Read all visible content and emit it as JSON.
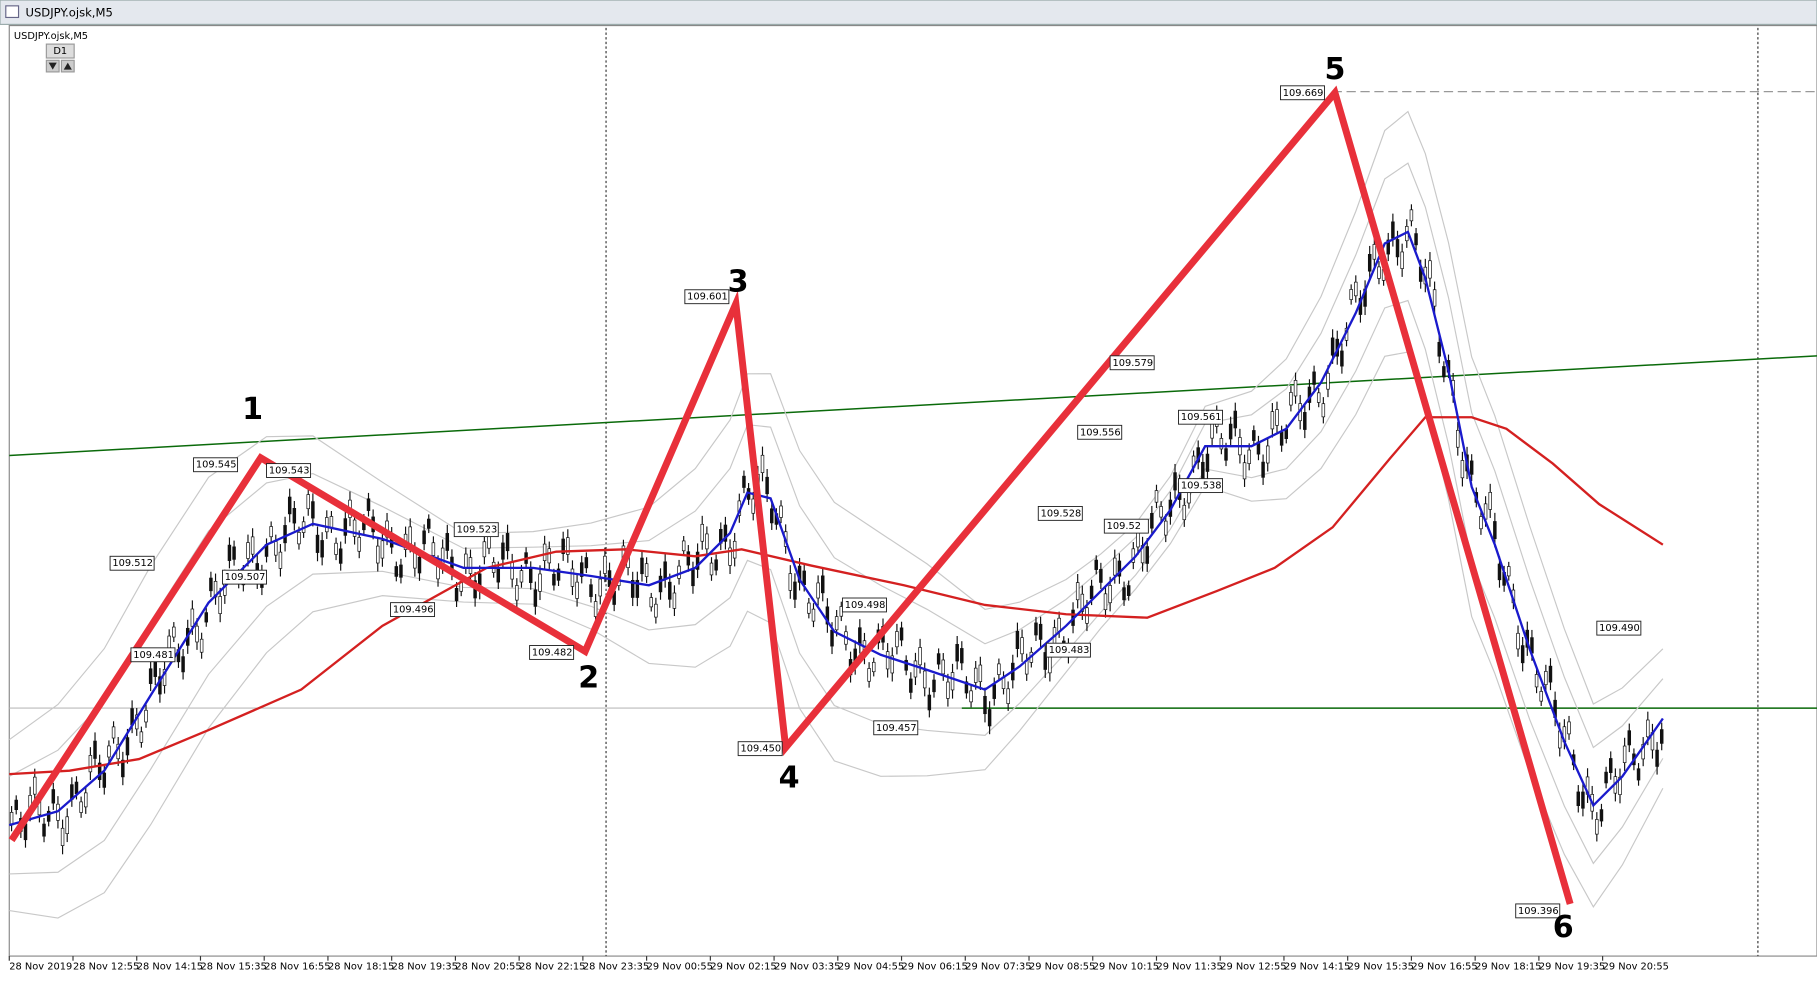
{
  "window": {
    "title": "USDJPY.ojsk,M5"
  },
  "chart": {
    "symbol_label": "USDJPY.ojsk,M5",
    "timeframe_button": "D1",
    "time_labels": [
      "28 Nov 2019",
      "28 Nov 12:55",
      "28 Nov 14:15",
      "28 Nov 15:35",
      "28 Nov 16:55",
      "28 Nov 18:15",
      "28 Nov 19:35",
      "28 Nov 20:55",
      "28 Nov 22:15",
      "28 Nov 23:35",
      "29 Nov 00:55",
      "29 Nov 02:15",
      "29 Nov 03:35",
      "29 Nov 04:55",
      "29 Nov 06:15",
      "29 Nov 07:35",
      "29 Nov 08:55",
      "29 Nov 10:15",
      "29 Nov 11:35",
      "29 Nov 12:55",
      "29 Nov 14:15",
      "29 Nov 15:35",
      "29 Nov 16:55",
      "29 Nov 18:15",
      "29 Nov 19:35",
      "29 Nov 20:55"
    ],
    "price_labels": [
      "109.545",
      "109.543",
      "109.512",
      "109.507",
      "109.496",
      "109.481",
      "109.523",
      "109.482",
      "109.601",
      "109.450",
      "109.498",
      "109.457",
      "109.483",
      "109.528",
      "109.52",
      "109.556",
      "109.579",
      "109.561",
      "109.538",
      "109.669",
      "109.396",
      "109.490"
    ],
    "wave_labels": [
      "1",
      "2",
      "3",
      "4",
      "5",
      "6"
    ]
  }
}
